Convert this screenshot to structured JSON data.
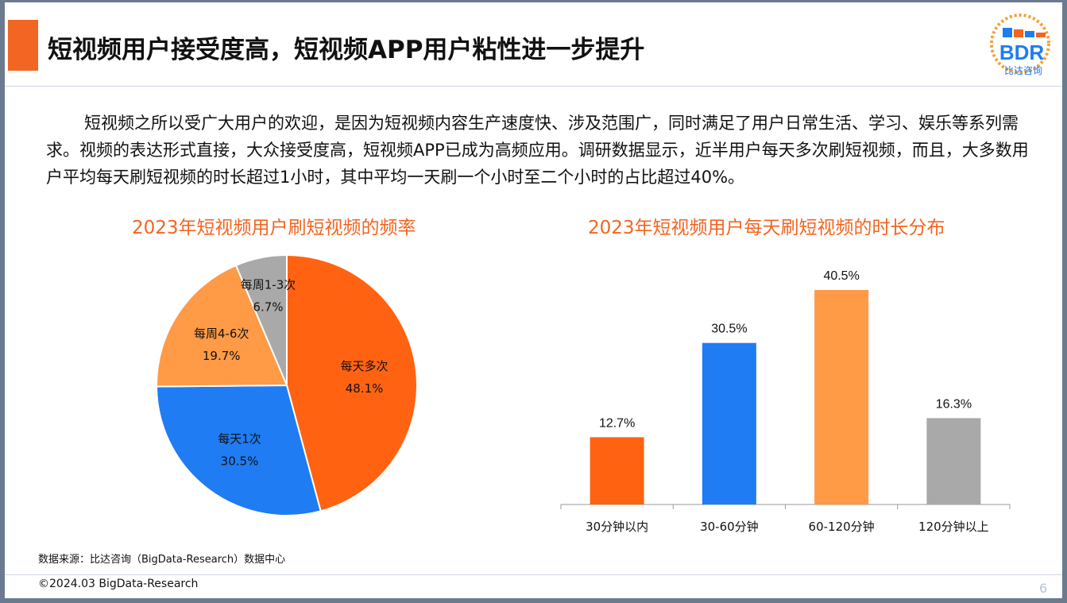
{
  "header": {
    "title": "短视频用户接受度高，短视频APP用户粘性进一步提升",
    "logo_text": "BDR",
    "logo_subtext": "比达咨询"
  },
  "paragraph": "短视频之所以受广大用户的欢迎，是因为短视频内容生产速度快、涉及范围广，同时满足了用户日常生活、学习、娱乐等系列需求。视频的表达形式直接，大众接受度高，短视频APP已成为高频应用。调研数据显示，近半用户每天多次刷短视频，而且，大多数用户平均每天刷短视频的时长超过1小时，其中平均一天刷一个小时至二个小时的占比超过40%。",
  "chart_data": [
    {
      "type": "pie",
      "title": "2023年短视频用户刷短视频的频率",
      "slices": [
        {
          "label": "每天多次",
          "value": 48.1,
          "value_label": "48.1%",
          "color": "#ff6311"
        },
        {
          "label": "每天1次",
          "value": 30.5,
          "value_label": "30.5%",
          "color": "#1f7cf3"
        },
        {
          "label": "每周4-6次",
          "value": 19.7,
          "value_label": "19.7%",
          "color": "#ff9a47"
        },
        {
          "label": "每周1-3次",
          "value": 6.7,
          "value_label": "6.7%",
          "color": "#a9a9a9"
        }
      ]
    },
    {
      "type": "bar",
      "title": "2023年短视频用户每天刷短视频的时长分布",
      "categories": [
        "30分钟以内",
        "30-60分钟",
        "60-120分钟",
        "120分钟以上"
      ],
      "values": [
        12.7,
        30.5,
        40.5,
        16.3
      ],
      "value_labels": [
        "12.7%",
        "30.5%",
        "40.5%",
        "16.3%"
      ],
      "colors": [
        "#ff6311",
        "#1f7cf3",
        "#ff9a47",
        "#a9a9a9"
      ],
      "ylim": [
        0,
        40.5
      ]
    }
  ],
  "footer": {
    "source": "数据来源：比达咨询（BigData-Research）数据中心",
    "copyright": "©2024.03 BigData-Research",
    "page_number": "6"
  }
}
